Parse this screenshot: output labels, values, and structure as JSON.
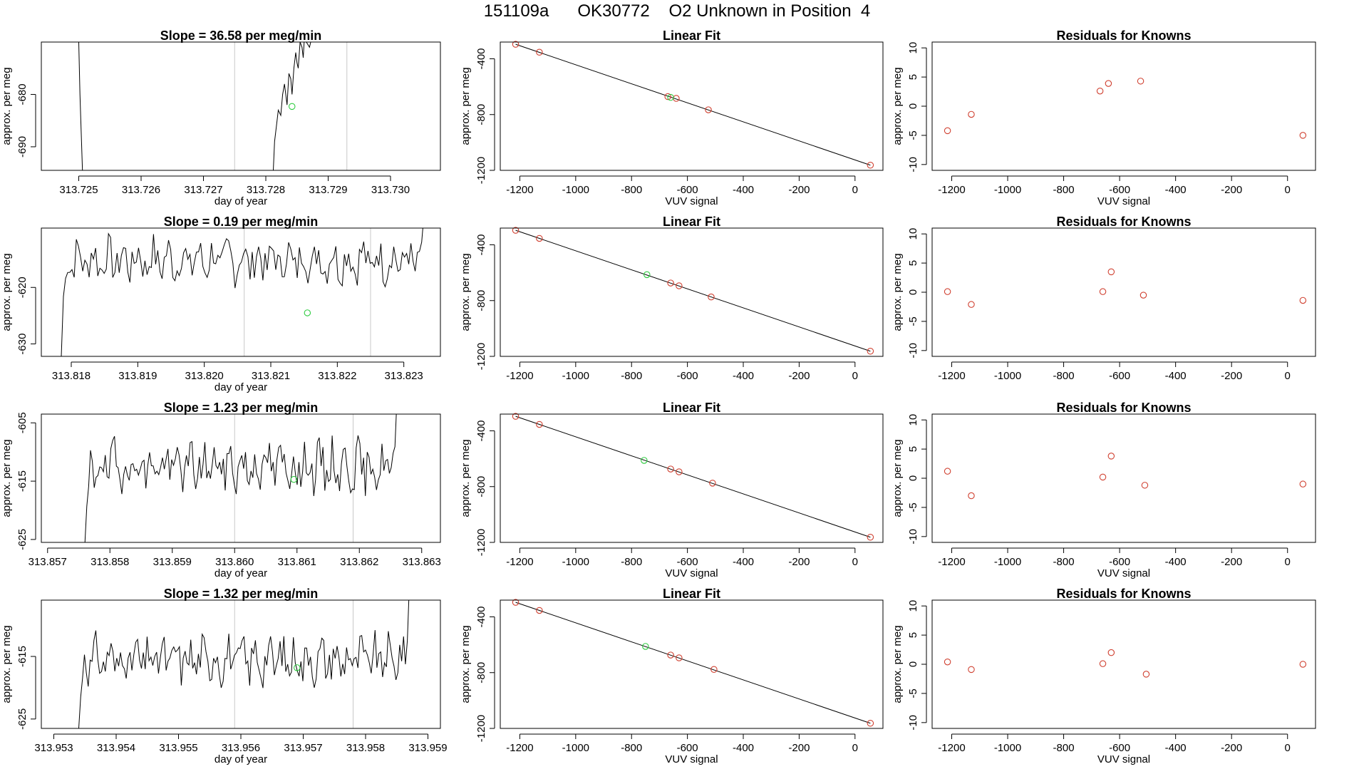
{
  "page": {
    "title": "151109a      OK30772    O2 Unknown in Position  4"
  },
  "chart_data": [
    {
      "type": "line",
      "row": 0,
      "title": "Slope =  36.58  per meg/min",
      "xlabel": "day of year",
      "ylabel": "approx. per meg",
      "xlim": [
        313.7244,
        313.7308
      ],
      "ylim": [
        -694.5,
        -670
      ],
      "xticks": [
        313.725,
        313.726,
        313.727,
        313.728,
        313.729,
        313.73
      ],
      "xtick_labels": [
        "313.725",
        "313.726",
        "313.727",
        "313.728",
        "313.729",
        "313.730"
      ],
      "yticks": [
        -690,
        -680
      ],
      "ytick_labels": [
        "-690",
        "-680"
      ],
      "vlines": [
        313.7275,
        313.7293
      ],
      "series": [
        {
          "kind": "line",
          "color": "#000000",
          "x": [
            313.725,
            313.72502,
            313.72506
          ],
          "y": [
            -670,
            -680,
            -694.5
          ]
        },
        {
          "kind": "line",
          "color": "#000000",
          "x": [
            313.72812,
            313.72814,
            313.72818,
            313.7282,
            313.72824,
            313.72827,
            313.7283,
            313.72834,
            313.72837,
            313.7284,
            313.72842,
            313.72845,
            313.72848,
            313.7285,
            313.72852,
            313.72855,
            313.72858,
            313.7286,
            313.72862,
            313.72865,
            313.7287,
            313.72872
          ],
          "y": [
            -694.5,
            -689,
            -685,
            -683,
            -684,
            -680,
            -678,
            -682,
            -676,
            -677,
            -680,
            -675,
            -672,
            -674,
            -675,
            -670,
            -671,
            -673,
            -669,
            -670,
            -671,
            -670
          ]
        },
        {
          "kind": "points",
          "color": "#2ecc40",
          "x": [
            313.72842
          ],
          "y": [
            -682.3
          ]
        }
      ]
    },
    {
      "type": "scatter",
      "row": 0,
      "title": "Linear Fit",
      "xlabel": "VUV signal",
      "ylabel": "approx. per meg",
      "xlim": [
        -1270,
        100
      ],
      "ylim": [
        -1200,
        -280
      ],
      "xticks": [
        -1200,
        -1000,
        -800,
        -600,
        -400,
        -200,
        0
      ],
      "xtick_labels": [
        "-1200",
        "-1000",
        "-800",
        "-600",
        "-400",
        "-200",
        "0"
      ],
      "yticks": [
        -1200,
        -800,
        -400
      ],
      "ytick_labels": [
        "-1200",
        "-800",
        "-400"
      ],
      "fit_line": {
        "x": [
          -1215,
          55
        ],
        "y": [
          -296,
          -1163
        ]
      },
      "series": [
        {
          "kind": "points",
          "color": "#d04030",
          "name": "knowns",
          "x": [
            -1215,
            -1130,
            -670,
            -640,
            -525,
            55
          ],
          "y": [
            -296,
            -353,
            -671,
            -684,
            -766,
            -1163
          ]
        },
        {
          "kind": "points",
          "color": "#2ecc40",
          "name": "unknown",
          "x": [
            -660
          ],
          "y": [
            -677
          ]
        }
      ]
    },
    {
      "type": "scatter",
      "row": 0,
      "title": "Residuals for Knowns",
      "xlabel": "VUV signal",
      "ylabel": "approx. per meg",
      "xlim": [
        -1270,
        100
      ],
      "ylim": [
        -11,
        11
      ],
      "xticks": [
        -1200,
        -1000,
        -800,
        -600,
        -400,
        -200,
        0
      ],
      "xtick_labels": [
        "-1200",
        "-1000",
        "-800",
        "-600",
        "-400",
        "-200",
        "0"
      ],
      "yticks": [
        -10,
        -5,
        0,
        5,
        10
      ],
      "ytick_labels": [
        "-10",
        "-5",
        "0",
        "5",
        "10"
      ],
      "series": [
        {
          "kind": "points",
          "color": "#d04030",
          "x": [
            -1215,
            -1130,
            -670,
            -640,
            -525,
            55
          ],
          "y": [
            -4.2,
            -1.4,
            2.6,
            3.9,
            4.3,
            -5.0
          ]
        }
      ]
    },
    {
      "type": "line",
      "row": 1,
      "title": "Slope =  0.19  per meg/min",
      "xlabel": "day of year",
      "ylabel": "approx. per meg",
      "xlim": [
        313.81755,
        313.82355
      ],
      "ylim": [
        -632.2,
        -609.5
      ],
      "xticks": [
        313.818,
        313.819,
        313.82,
        313.821,
        313.822,
        313.823
      ],
      "xtick_labels": [
        "313.818",
        "313.819",
        "313.820",
        "313.821",
        "313.822",
        "313.823"
      ],
      "yticks": [
        -630,
        -620
      ],
      "ytick_labels": [
        "-630",
        "-620"
      ],
      "vlines": [
        313.8206,
        313.8225
      ],
      "series": [
        {
          "kind": "line",
          "color": "#000000",
          "x": [],
          "y": [],
          "gen": {
            "x0": 313.81785,
            "x1": 313.8233,
            "n": 170,
            "base": -615.2,
            "amp": 3.2,
            "seed": 7
          }
        },
        {
          "kind": "points",
          "color": "#2ecc40",
          "x": [
            313.82155
          ],
          "y": [
            -624.5
          ]
        }
      ]
    },
    {
      "type": "scatter",
      "row": 1,
      "title": "Linear Fit",
      "xlabel": "",
      "ylabel": "approx. per meg",
      "xlim": [
        -1270,
        100
      ],
      "ylim": [
        -1200,
        -280
      ],
      "xticks": [
        -1200,
        -1000,
        -800,
        -600,
        -400,
        -200,
        0
      ],
      "xtick_labels": [
        "-1200",
        "-1000",
        "-800",
        "-600",
        "-400",
        "-200",
        "0"
      ],
      "yticks": [
        -1200,
        -800,
        -400
      ],
      "ytick_labels": [
        "-1200",
        "-800",
        "-400"
      ],
      "fit_line": {
        "x": [
          -1215,
          55
        ],
        "y": [
          -296,
          -1163
        ]
      },
      "series": [
        {
          "kind": "points",
          "color": "#d04030",
          "name": "knowns",
          "x": [
            -1215,
            -1130,
            -660,
            -630,
            -515,
            55
          ],
          "y": [
            -296,
            -354,
            -674,
            -694,
            -774,
            -1163
          ]
        },
        {
          "kind": "points",
          "color": "#2ecc40",
          "name": "unknown",
          "x": [
            -745
          ],
          "y": [
            -614
          ]
        }
      ]
    },
    {
      "type": "scatter",
      "row": 1,
      "title": "Residuals for Knowns",
      "xlabel": "",
      "ylabel": "approx. per meg",
      "xlim": [
        -1270,
        100
      ],
      "ylim": [
        -11,
        11
      ],
      "xticks": [
        -1200,
        -1000,
        -800,
        -600,
        -400,
        -200,
        0
      ],
      "xtick_labels": [
        "-1200",
        "-1000",
        "-800",
        "-600",
        "-400",
        "-200",
        "0"
      ],
      "yticks": [
        -10,
        -5,
        0,
        5,
        10
      ],
      "ytick_labels": [
        "-10",
        "-5",
        "0",
        "5",
        "10"
      ],
      "series": [
        {
          "kind": "points",
          "color": "#d04030",
          "x": [
            -1215,
            -1130,
            -660,
            -630,
            -515,
            55
          ],
          "y": [
            0.1,
            -2.1,
            0.1,
            3.5,
            -0.5,
            -1.4
          ]
        }
      ]
    },
    {
      "type": "line",
      "row": 2,
      "title": "Slope =  1.23  per meg/min",
      "xlabel": "day of year",
      "ylabel": "approx. per meg",
      "xlim": [
        313.8569,
        313.8633
      ],
      "ylim": [
        -625.5,
        -603.5
      ],
      "xticks": [
        313.857,
        313.858,
        313.859,
        313.86,
        313.861,
        313.862,
        313.863
      ],
      "xtick_labels": [
        "313.857",
        "313.858",
        "313.859",
        "313.860",
        "313.861",
        "313.862",
        "313.863"
      ],
      "yticks": [
        -625,
        -615,
        -605
      ],
      "ytick_labels": [
        "-625",
        "-615",
        "-605"
      ],
      "vlines": [
        313.86,
        313.8619
      ],
      "series": [
        {
          "kind": "line",
          "color": "#000000",
          "x": [],
          "y": [],
          "gen": {
            "x0": 313.8576,
            "x1": 313.8626,
            "n": 170,
            "base": -612.5,
            "amp": 3.4,
            "seed": 19
          }
        },
        {
          "kind": "points",
          "color": "#2ecc40",
          "x": [
            313.86095
          ],
          "y": [
            -614.7
          ]
        }
      ]
    },
    {
      "type": "scatter",
      "row": 2,
      "title": "Linear Fit",
      "xlabel": "VUV signal",
      "ylabel": "approx. per meg",
      "xlim": [
        -1270,
        100
      ],
      "ylim": [
        -1200,
        -280
      ],
      "xticks": [
        -1200,
        -1000,
        -800,
        -600,
        -400,
        -200,
        0
      ],
      "xtick_labels": [
        "-1200",
        "-1000",
        "-800",
        "-600",
        "-400",
        "-200",
        "0"
      ],
      "yticks": [
        -1200,
        -800,
        -400
      ],
      "ytick_labels": [
        "-1200",
        "-800",
        "-400"
      ],
      "fit_line": {
        "x": [
          -1215,
          55
        ],
        "y": [
          -296,
          -1163
        ]
      },
      "series": [
        {
          "kind": "points",
          "color": "#d04030",
          "name": "knowns",
          "x": [
            -1215,
            -1130,
            -660,
            -630,
            -510,
            55
          ],
          "y": [
            -296,
            -354,
            -674,
            -694,
            -775,
            -1163
          ]
        },
        {
          "kind": "points",
          "color": "#2ecc40",
          "name": "unknown",
          "x": [
            -755
          ],
          "y": [
            -612
          ]
        }
      ]
    },
    {
      "type": "scatter",
      "row": 2,
      "title": "Residuals for Knowns",
      "xlabel": "VUV signal",
      "ylabel": "approx. per meg",
      "xlim": [
        -1270,
        100
      ],
      "ylim": [
        -11,
        11
      ],
      "xticks": [
        -1200,
        -1000,
        -800,
        -600,
        -400,
        -200,
        0
      ],
      "xtick_labels": [
        "-1200",
        "-1000",
        "-800",
        "-600",
        "-400",
        "-200",
        "0"
      ],
      "yticks": [
        -10,
        -5,
        0,
        5,
        10
      ],
      "ytick_labels": [
        "-10",
        "-5",
        "0",
        "5",
        "10"
      ],
      "series": [
        {
          "kind": "points",
          "color": "#d04030",
          "x": [
            -1215,
            -1130,
            -660,
            -630,
            -510,
            55
          ],
          "y": [
            1.2,
            -3.0,
            0.2,
            3.8,
            -1.2,
            -1.0
          ]
        }
      ]
    },
    {
      "type": "line",
      "row": 3,
      "title": "Slope =  1.32  per meg/min",
      "xlabel": "day of year",
      "ylabel": "approx. per meg",
      "xlim": [
        313.9528,
        313.9592
      ],
      "ylim": [
        -626.5,
        -606
      ],
      "xticks": [
        313.953,
        313.954,
        313.955,
        313.956,
        313.957,
        313.958,
        313.959
      ],
      "xtick_labels": [
        "313.953",
        "313.954",
        "313.955",
        "313.956",
        "313.957",
        "313.958",
        "313.959"
      ],
      "yticks": [
        -625,
        -615
      ],
      "ytick_labels": [
        "-625",
        "-615"
      ],
      "vlines": [
        313.9559,
        313.9578
      ],
      "series": [
        {
          "kind": "line",
          "color": "#000000",
          "x": [],
          "y": [],
          "gen": {
            "x0": 313.9534,
            "x1": 313.9587,
            "n": 175,
            "base": -615.5,
            "amp": 3.0,
            "seed": 31
          }
        },
        {
          "kind": "points",
          "color": "#2ecc40",
          "x": [
            313.9569
          ],
          "y": [
            -616.8
          ]
        }
      ]
    },
    {
      "type": "scatter",
      "row": 3,
      "title": "Linear Fit",
      "xlabel": "VUV signal",
      "ylabel": "approx. per meg",
      "xlim": [
        -1270,
        100
      ],
      "ylim": [
        -1200,
        -280
      ],
      "xticks": [
        -1200,
        -1000,
        -800,
        -600,
        -400,
        -200,
        0
      ],
      "xtick_labels": [
        "-1200",
        "-1000",
        "-800",
        "-600",
        "-400",
        "-200",
        "0"
      ],
      "yticks": [
        -1200,
        -800,
        -400
      ],
      "ytick_labels": [
        "-1200",
        "-800",
        "-400"
      ],
      "fit_line": {
        "x": [
          -1215,
          55
        ],
        "y": [
          -296,
          -1163
        ]
      },
      "series": [
        {
          "kind": "points",
          "color": "#d04030",
          "name": "knowns",
          "x": [
            -1215,
            -1130,
            -660,
            -630,
            -505,
            55
          ],
          "y": [
            -296,
            -354,
            -674,
            -694,
            -777,
            -1163
          ]
        },
        {
          "kind": "points",
          "color": "#2ecc40",
          "name": "unknown",
          "x": [
            -750
          ],
          "y": [
            -612
          ]
        }
      ]
    },
    {
      "type": "scatter",
      "row": 3,
      "title": "Residuals for Knowns",
      "xlabel": "VUV signal",
      "ylabel": "approx. per meg",
      "xlim": [
        -1270,
        100
      ],
      "ylim": [
        -11,
        11
      ],
      "xticks": [
        -1200,
        -1000,
        -800,
        -600,
        -400,
        -200,
        0
      ],
      "xtick_labels": [
        "-1200",
        "-1000",
        "-800",
        "-600",
        "-400",
        "-200",
        "0"
      ],
      "yticks": [
        -10,
        -5,
        0,
        5,
        10
      ],
      "ytick_labels": [
        "-10",
        "-5",
        "0",
        "5",
        "10"
      ],
      "series": [
        {
          "kind": "points",
          "color": "#d04030",
          "x": [
            -1215,
            -1130,
            -660,
            -630,
            -505,
            55
          ],
          "y": [
            0.4,
            -0.9,
            0.1,
            2.0,
            -1.7,
            0.0
          ]
        }
      ]
    }
  ]
}
